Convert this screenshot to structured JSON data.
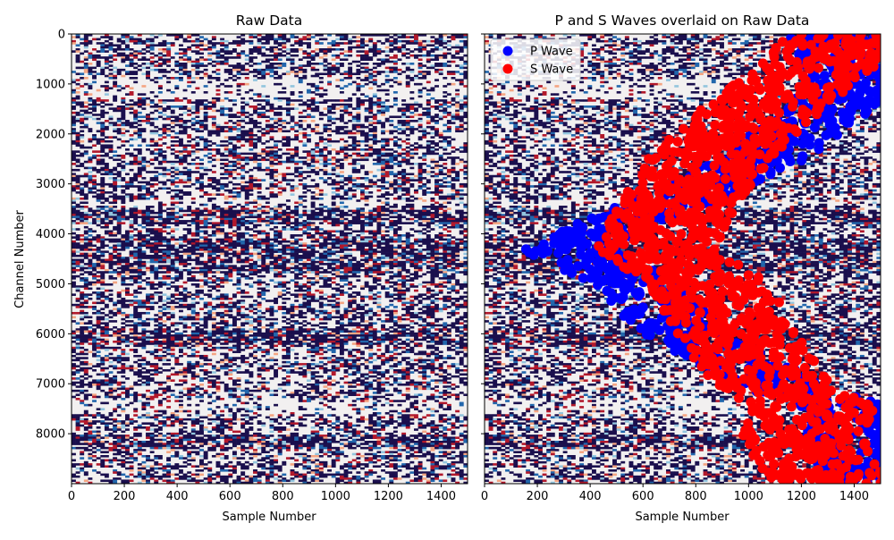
{
  "chart_data": [
    {
      "type": "heatmap",
      "title": "Raw Data",
      "xlabel": "Sample Number",
      "ylabel": "Channel Number",
      "xlim": [
        0,
        1500
      ],
      "ylim": [
        9000,
        0
      ],
      "xticks": [
        0,
        200,
        400,
        600,
        800,
        1000,
        1200,
        1400
      ],
      "yticks": [
        0,
        1000,
        2000,
        3000,
        4000,
        5000,
        6000,
        7000,
        8000
      ],
      "colormap": [
        "#1a0f4d",
        "#ffffff",
        "#e31a1c"
      ],
      "high_energy_bands": [
        [
          3500,
          3800
        ],
        [
          4100,
          4800
        ],
        [
          5900,
          6200
        ],
        [
          8000,
          8300
        ]
      ],
      "quiet_bands": [
        [
          900,
          1300
        ],
        [
          3300,
          3450
        ],
        [
          7300,
          7600
        ]
      ]
    },
    {
      "type": "scatter",
      "title": "P and S Waves overlaid on Raw Data",
      "xlabel": "Sample Number",
      "ylabel": "",
      "xlim": [
        0,
        1500
      ],
      "ylim": [
        9000,
        0
      ],
      "xticks": [
        0,
        200,
        400,
        600,
        800,
        1000,
        1200,
        1400
      ],
      "yticks": [
        0,
        1000,
        2000,
        3000,
        4000,
        5000,
        6000,
        7000,
        8000
      ],
      "legend_position": "top-left",
      "series": [
        {
          "name": "P Wave",
          "color": "#0000ff",
          "centerline": [
            {
              "channel": 0,
              "sample": 1320
            },
            {
              "channel": 1000,
              "sample": 1390
            },
            {
              "channel": 1500,
              "sample": 1300
            },
            {
              "channel": 2500,
              "sample": 1050
            },
            {
              "channel": 3500,
              "sample": 650
            },
            {
              "channel": 4300,
              "sample": 300
            },
            {
              "channel": 5000,
              "sample": 580
            },
            {
              "channel": 6000,
              "sample": 760
            },
            {
              "channel": 7000,
              "sample": 1100
            },
            {
              "channel": 7500,
              "sample": 1400
            },
            {
              "channel": 8000,
              "sample": 1380
            },
            {
              "channel": 9000,
              "sample": 1450
            }
          ],
          "spread": 170
        },
        {
          "name": "S Wave",
          "color": "#ff0000",
          "centerline": [
            {
              "channel": 0,
              "sample": 1380
            },
            {
              "channel": 700,
              "sample": 1250
            },
            {
              "channel": 1500,
              "sample": 1050
            },
            {
              "channel": 2500,
              "sample": 850
            },
            {
              "channel": 3500,
              "sample": 720
            },
            {
              "channel": 4300,
              "sample": 650
            },
            {
              "channel": 5000,
              "sample": 850
            },
            {
              "channel": 6000,
              "sample": 950
            },
            {
              "channel": 7000,
              "sample": 1100
            },
            {
              "channel": 7500,
              "sample": 1250
            },
            {
              "channel": 8000,
              "sample": 1200
            },
            {
              "channel": 9000,
              "sample": 1300
            }
          ],
          "spread": 230
        }
      ]
    }
  ]
}
